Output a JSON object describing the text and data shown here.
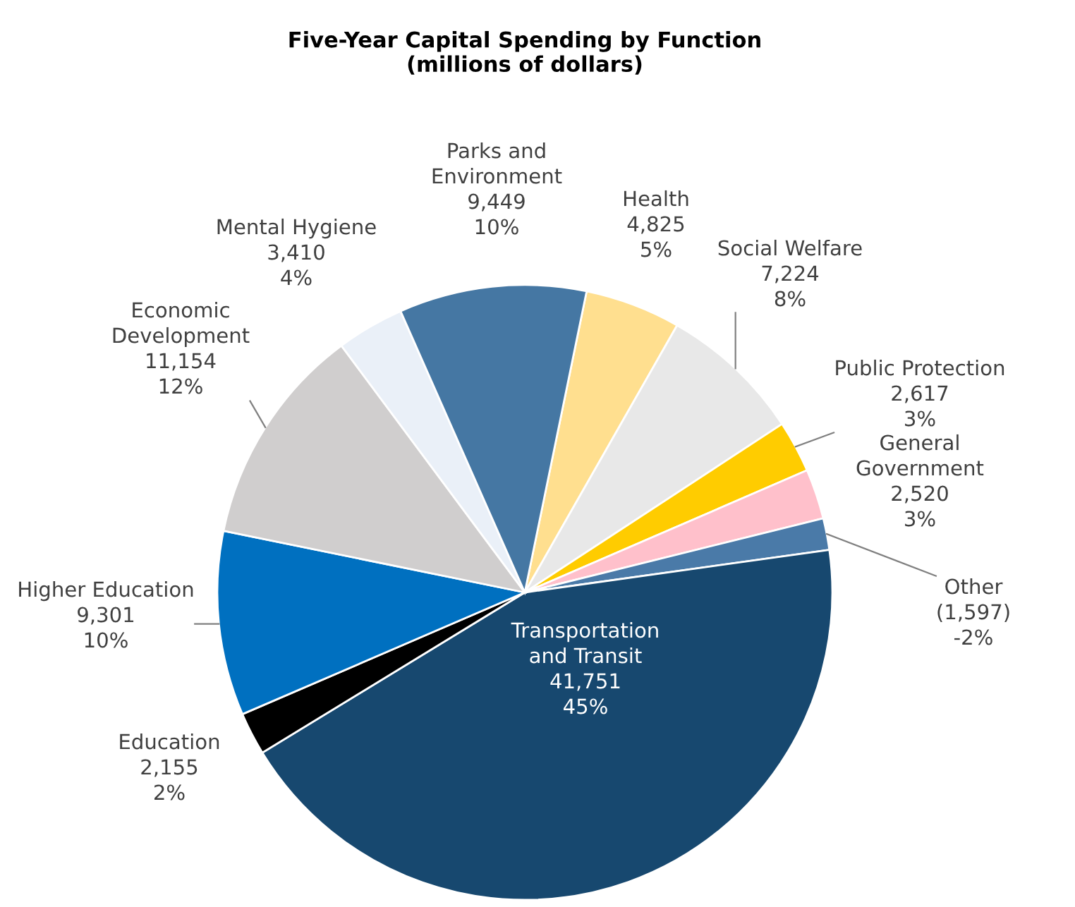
{
  "chart_data": {
    "type": "pie",
    "title": "Five-Year Capital Spending by Function\n(millions of dollars)",
    "categories": [
      "Health",
      "Social Welfare",
      "Public Protection",
      "General\nGovernment",
      "Other",
      "Transportation\nand Transit",
      "Education",
      "Higher Education",
      "Economic\nDevelopment",
      "Mental Hygiene",
      "Parks and\nEnvironment"
    ],
    "values": [
      4825,
      7224,
      2617,
      2520,
      1597,
      41751,
      2155,
      9301,
      11154,
      3410,
      9449
    ],
    "value_labels": [
      "4,825\n5%",
      "7,224\n8%",
      "2,617\n3%",
      "2,520\n3%",
      "(1,597)\n-2%",
      "41,751\n45%",
      "2,155\n2%",
      "9,301\n10%",
      "11,154\n12%",
      "3,410\n4%",
      "9,449\n10%"
    ],
    "colors": [
      "#ffdf8f",
      "#e8e8e8",
      "#ffcc00",
      "#ffc0cb",
      "#4a7aa8",
      "#17486f",
      "#000000",
      "#0070c0",
      "#d0cece",
      "#eaf0f8",
      "#4577a3"
    ],
    "legend": false
  }
}
